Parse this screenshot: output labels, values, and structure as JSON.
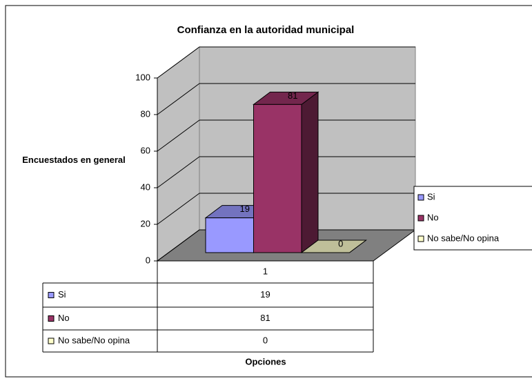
{
  "chart_data": {
    "type": "bar",
    "title": "Confianza en la autoridad municipal",
    "y_label": "Encuestados en general",
    "x_label": "Opciones",
    "categories": [
      "1"
    ],
    "series": [
      {
        "name": "Si",
        "color": "#9999ff",
        "values": [
          19
        ]
      },
      {
        "name": "No",
        "color": "#993366",
        "values": [
          81
        ]
      },
      {
        "name": "No sabe/No opina",
        "color": "#ffffcc",
        "values": [
          0
        ]
      }
    ],
    "ylim": [
      0,
      100
    ],
    "yticks": [
      0,
      20,
      40,
      60,
      80,
      100
    ],
    "grid": true,
    "legend": "right",
    "data_table": true
  }
}
